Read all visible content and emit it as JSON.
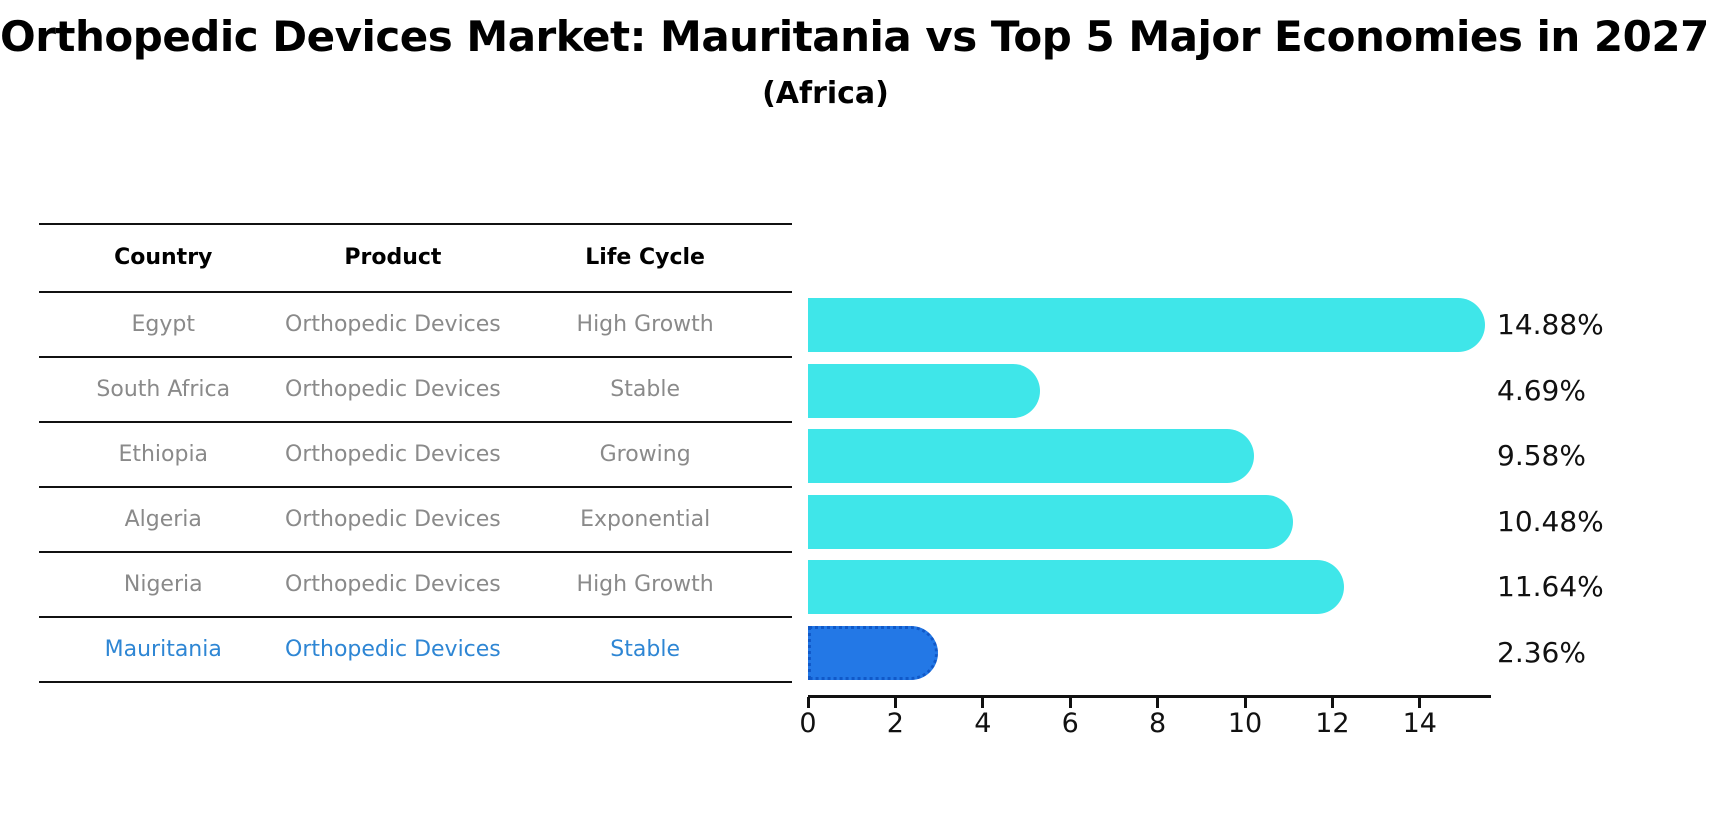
{
  "title": "Orthopedic Devices Market: Mauritania vs Top 5 Major Economies in 2027",
  "subtitle": "(Africa)",
  "table": {
    "headers": [
      "Country",
      "Product",
      "Life Cycle"
    ],
    "rows": [
      {
        "country": "Egypt",
        "product": "Orthopedic Devices",
        "life_cycle": "High Growth"
      },
      {
        "country": "South Africa",
        "product": "Orthopedic Devices",
        "life_cycle": "Stable"
      },
      {
        "country": "Ethiopia",
        "product": "Orthopedic Devices",
        "life_cycle": "Growing"
      },
      {
        "country": "Algeria",
        "product": "Orthopedic Devices",
        "life_cycle": "Exponential"
      },
      {
        "country": "Nigeria",
        "product": "Orthopedic Devices",
        "life_cycle": "High Growth"
      },
      {
        "country": "Mauritania",
        "product": "Orthopedic Devices",
        "life_cycle": "Stable"
      }
    ]
  },
  "chart_data": {
    "type": "bar",
    "orientation": "horizontal",
    "title": "Orthopedic Devices Market: Mauritania vs Top 5 Major Economies in 2027",
    "subtitle": "(Africa)",
    "categories": [
      "Egypt",
      "South Africa",
      "Ethiopia",
      "Algeria",
      "Nigeria",
      "Mauritania"
    ],
    "values": [
      14.88,
      4.69,
      9.58,
      10.48,
      11.64,
      2.36
    ],
    "value_labels": [
      "14.88%",
      "4.69%",
      "9.58%",
      "10.48%",
      "11.64%",
      "2.36%"
    ],
    "xticks": [
      "0",
      "2",
      "4",
      "6",
      "8",
      "10",
      "12",
      "14"
    ],
    "xtick_values": [
      0,
      2,
      4,
      6,
      8,
      10,
      12,
      14
    ],
    "xlim": [
      0,
      15.6
    ],
    "grid": false,
    "legend": false,
    "bar_color": "#3FE6E9",
    "highlight_color": "#2378E6",
    "highlight_border_color": "#1059C9",
    "highlight_index": 5,
    "highlight_category": "Mauritania"
  }
}
